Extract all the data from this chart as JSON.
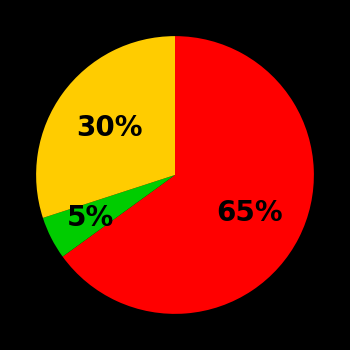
{
  "slices": [
    65,
    5,
    30
  ],
  "colors": [
    "#ff0000",
    "#00cc00",
    "#ffcc00"
  ],
  "labels": [
    "65%",
    "5%",
    "30%"
  ],
  "label_radii": [
    0.6,
    0.68,
    0.58
  ],
  "background_color": "#000000",
  "startangle": 90,
  "counterclock": false,
  "text_color": "#000000",
  "font_size": 20,
  "font_weight": "bold"
}
